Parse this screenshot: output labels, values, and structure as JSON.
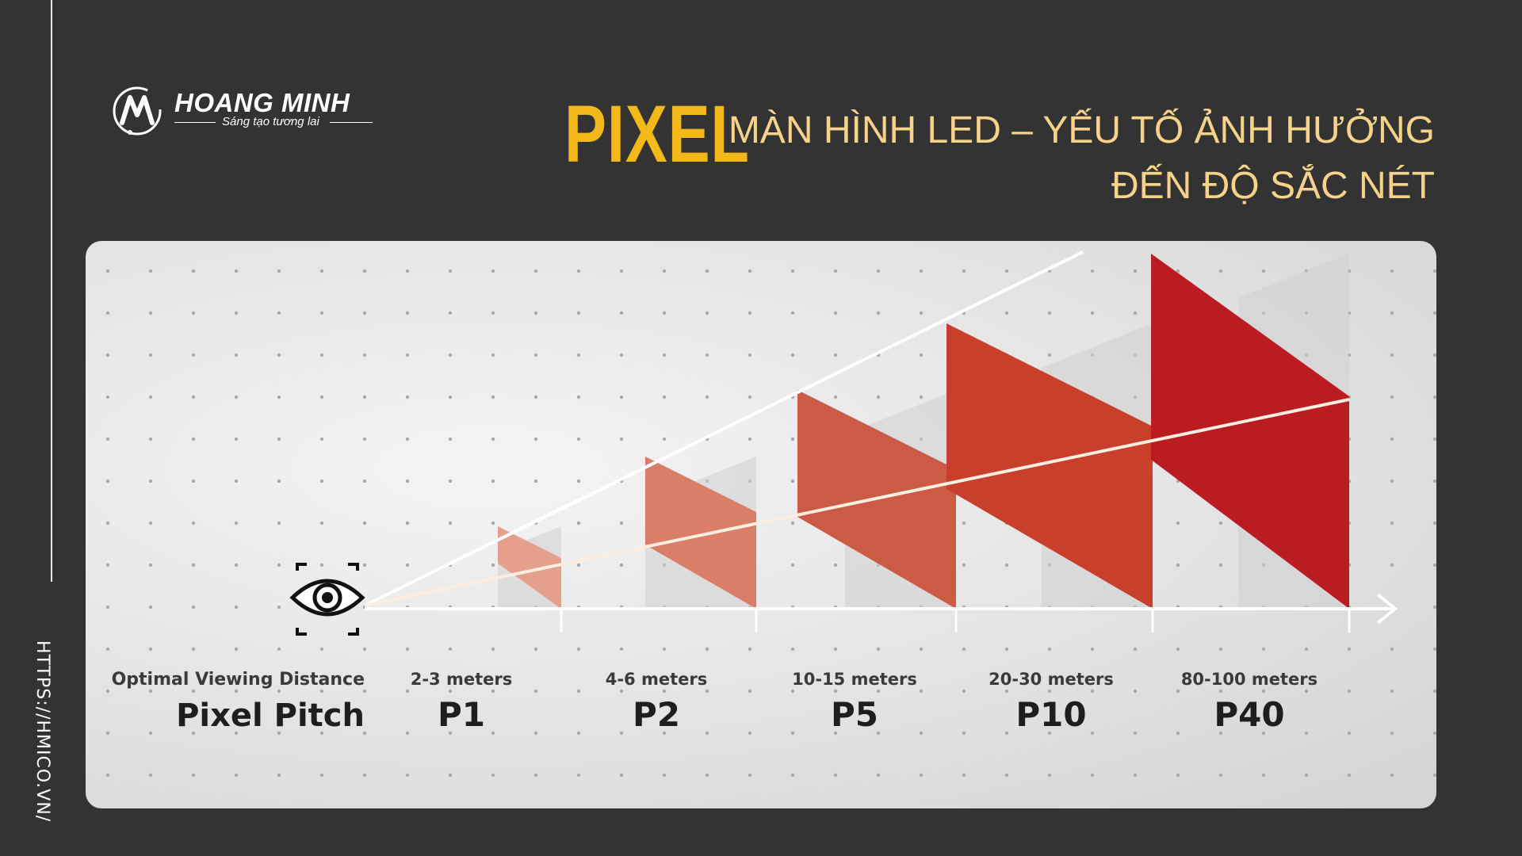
{
  "sidebar": {
    "url": "HTTPS://HMICO.VN/"
  },
  "logo": {
    "name": "HOANG MINH",
    "tagline": "Sáng tạo tương lai"
  },
  "title": {
    "highlight": "PIXEL",
    "line1": "MÀN HÌNH LED – YẾU TỐ ẢNH HƯỞNG",
    "line2": "ĐẾN ĐỘ SẮC NÉT"
  },
  "colors": {
    "accent": "#f3b81a",
    "subtitle": "#f6d28a",
    "background": "#333333"
  },
  "diagram": {
    "row_labels": {
      "distance": "Optimal Viewing Distance",
      "pitch": "Pixel Pitch"
    },
    "columns": [
      {
        "distance": "2-3 meters",
        "pitch": "P1",
        "color": "#e4a08c"
      },
      {
        "distance": "4-6 meters",
        "pitch": "P2",
        "color": "#d97f69"
      },
      {
        "distance": "10-15 meters",
        "pitch": "P5",
        "color": "#cc5b45"
      },
      {
        "distance": "20-30 meters",
        "pitch": "P10",
        "color": "#c83f2c"
      },
      {
        "distance": "80-100 meters",
        "pitch": "P40",
        "color": "#bb1c22"
      }
    ]
  }
}
